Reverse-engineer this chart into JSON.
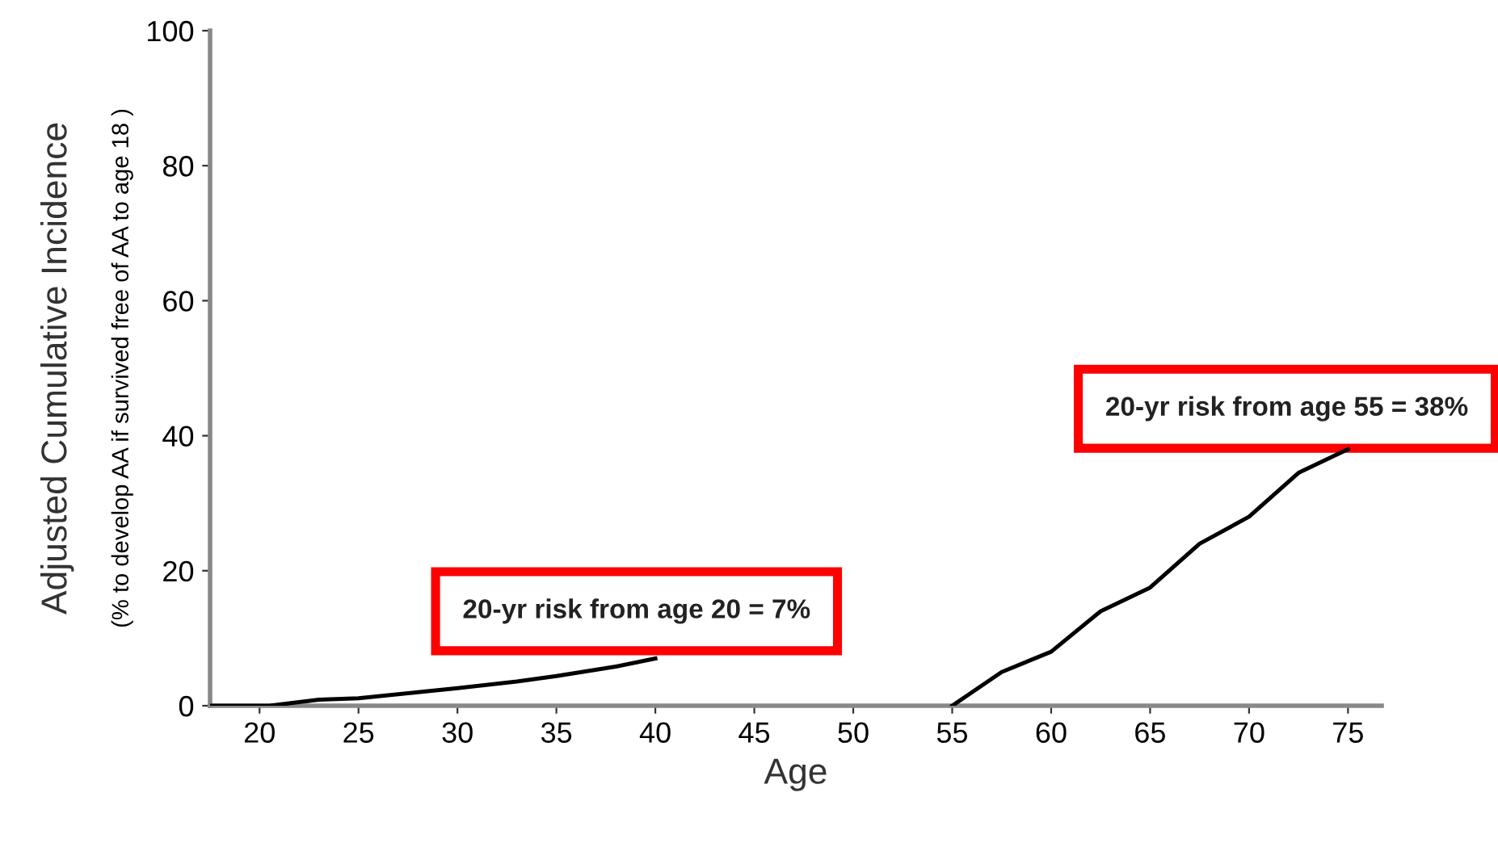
{
  "chart_data": {
    "type": "line",
    "xlabel": "Age",
    "ylabel": "Adjusted Cumulative Incidence",
    "xlim": [
      17.5,
      76.7
    ],
    "xticks": [
      20,
      25,
      30,
      35,
      40,
      45,
      50,
      55,
      60,
      65,
      70,
      75
    ],
    "ylim": [
      0,
      100
    ],
    "yticks": [
      0,
      20,
      40,
      60,
      80,
      100
    ],
    "grid": false,
    "legend": false,
    "marker": "none",
    "line_style": "solid",
    "series": [
      {
        "color": "#000000",
        "x": [
          17.5,
          20.5,
          23,
          25,
          28,
          30,
          33,
          35,
          38,
          40
        ],
        "values": [
          0,
          0,
          0.9,
          1.1,
          2,
          2.6,
          3.6,
          4.4,
          5.8,
          7
        ]
      },
      {
        "color": "#000000",
        "x": [
          55,
          57.5,
          60,
          62.5,
          65,
          67.5,
          70,
          72.5,
          75
        ],
        "values": [
          0,
          5,
          8,
          14,
          17.5,
          24,
          28,
          34.5,
          38
        ]
      }
    ],
    "annotations": [
      "(% to develop AA if survived free of AA to age 18 )",
      "20-yr risk from age 20 = 7%",
      "20-yr risk from age 55 = 38%"
    ]
  }
}
